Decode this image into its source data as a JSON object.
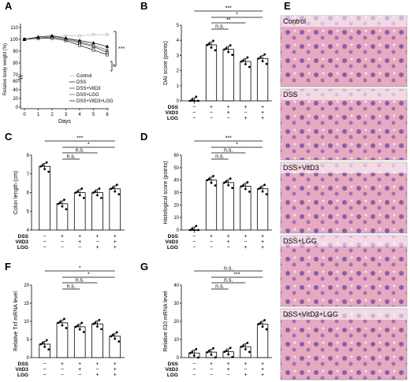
{
  "colors": {
    "bar_fill": "#ffffff",
    "stroke": "#000000",
    "tissue_purple": "#6b4f9e",
    "tissue_pink": "#e7a8c2"
  },
  "chart_data": [
    {
      "id": "A",
      "type": "line",
      "xlabel": "Days",
      "ylabel": "Relative body weight (%)",
      "x": [
        0,
        1,
        2,
        3,
        4,
        5,
        6
      ],
      "yticks": [
        "0",
        "20",
        "40",
        "60",
        "70",
        "80",
        "90",
        "100",
        "110"
      ],
      "legend": [
        "Control",
        "DSS",
        "DSS+VitD3",
        "DSS+LGG",
        "DSS+VitD3+LGG"
      ],
      "series": [
        {
          "name": "Control",
          "values": [
            100,
            101,
            102,
            103,
            103,
            104,
            104
          ]
        },
        {
          "name": "DSS",
          "values": [
            100,
            101,
            101,
            99,
            95,
            91,
            87
          ]
        },
        {
          "name": "DSS+VitD3",
          "values": [
            100,
            101,
            102,
            100,
            97,
            94,
            89
          ]
        },
        {
          "name": "DSS+LGG",
          "values": [
            100,
            102,
            103,
            101,
            98,
            95,
            91
          ]
        },
        {
          "name": "DSS+VitD3+LGG",
          "values": [
            100,
            102,
            103,
            101,
            99,
            97,
            94
          ]
        }
      ],
      "annotations": [
        "***",
        "*"
      ]
    },
    {
      "id": "B",
      "type": "bar",
      "ylabel": "DAI score (points)",
      "yticks": [
        "0",
        "1",
        "2",
        "3",
        "4",
        "5"
      ],
      "ylim": [
        0,
        5
      ],
      "values": [
        0,
        3.7,
        3.4,
        2.6,
        2.8
      ],
      "sig": [
        "***",
        "*",
        "**",
        "n.s."
      ]
    },
    {
      "id": "C",
      "type": "bar",
      "ylabel": "Colon length (cm)",
      "yticks": [
        "4",
        "5",
        "6",
        "7",
        "8"
      ],
      "ylim": [
        4,
        8
      ],
      "values": [
        7.4,
        5.4,
        6.0,
        6.0,
        6.2
      ],
      "sig": [
        "***",
        "*",
        "n.s.",
        "n.s."
      ]
    },
    {
      "id": "D",
      "type": "bar",
      "ylabel": "Histological score (points)",
      "yticks": [
        "0",
        "10",
        "20",
        "30",
        "40",
        "50",
        "60"
      ],
      "ylim": [
        0,
        60
      ],
      "values": [
        0,
        40,
        38,
        35,
        33
      ],
      "sig": [
        "***",
        "*",
        "n.s.",
        "n.s."
      ]
    },
    {
      "id": "F",
      "type": "bar",
      "ylabel": "Relative Tnf mRNA level",
      "yticks": [
        "0",
        "5",
        "10",
        "15",
        "20"
      ],
      "ylim": [
        0,
        20
      ],
      "values": [
        3.7,
        9.6,
        8.5,
        9.3,
        5.9
      ],
      "sig": [
        "*",
        "*",
        "n.s.",
        "n.s."
      ]
    },
    {
      "id": "G",
      "type": "bar",
      "ylabel": "Relative Il10 mRNA level",
      "yticks": [
        "0",
        "10",
        "20",
        "30",
        "40"
      ],
      "ylim": [
        0,
        40
      ],
      "values": [
        2.5,
        3.0,
        3.2,
        6.0,
        18.5
      ],
      "sig": [
        "n.s.",
        "***",
        "n.s.",
        "n.s."
      ]
    }
  ],
  "treatment_rows": {
    "labels": [
      "DSS",
      "VitD3",
      "LGG"
    ],
    "DSS": [
      "−",
      "+",
      "+",
      "+",
      "+"
    ],
    "VitD3": [
      "−",
      "−",
      "+",
      "−",
      "+"
    ],
    "LGG": [
      "−",
      "−",
      "−",
      "+",
      "+"
    ]
  },
  "histology": {
    "letter": "E",
    "labels": [
      "Control",
      "DSS",
      "DSS+VitD3",
      "DSS+LGG",
      "DSS+VitD3+LGG"
    ]
  }
}
